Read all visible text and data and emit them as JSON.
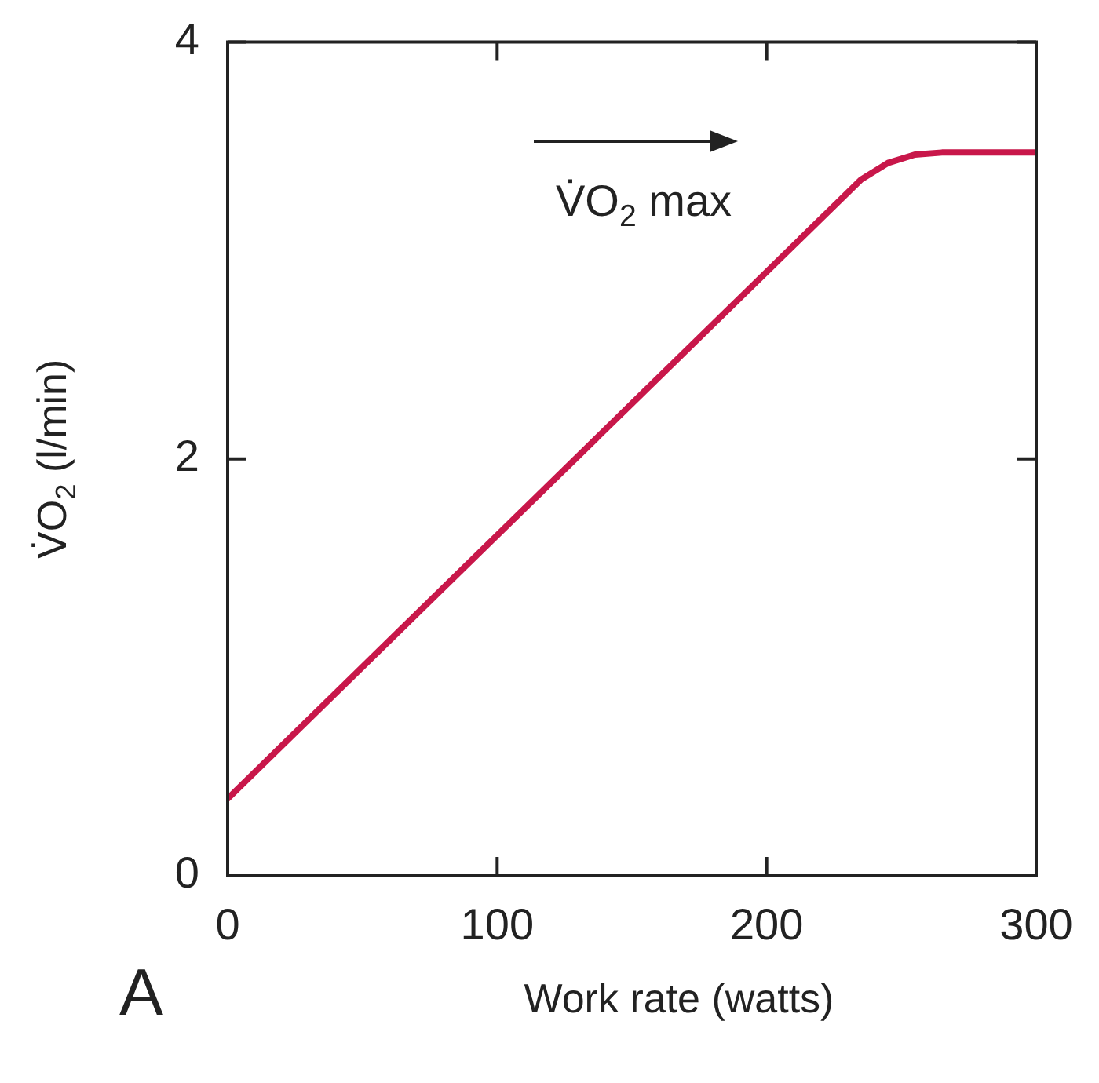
{
  "chart_data": {
    "type": "line",
    "xlabel": "Work rate (watts)",
    "ylabel": "V̇O$_{2}$ (l/min)",
    "x": [
      0,
      235,
      245,
      255,
      265,
      300
    ],
    "series": [
      {
        "color": "#c8174a",
        "values": [
          0.37,
          3.34,
          3.42,
          3.46,
          3.47,
          3.47
        ]
      }
    ],
    "xlim": [
      0,
      300
    ],
    "xticks": [
      0,
      100,
      200,
      300
    ],
    "ylim": [
      0,
      4
    ],
    "yticks": [
      0,
      2,
      4
    ],
    "annotations": [
      "V̇O$_{2}$ max",
      "A"
    ],
    "grid": false,
    "legend": false,
    "marker": "none",
    "line_style": "solid"
  }
}
